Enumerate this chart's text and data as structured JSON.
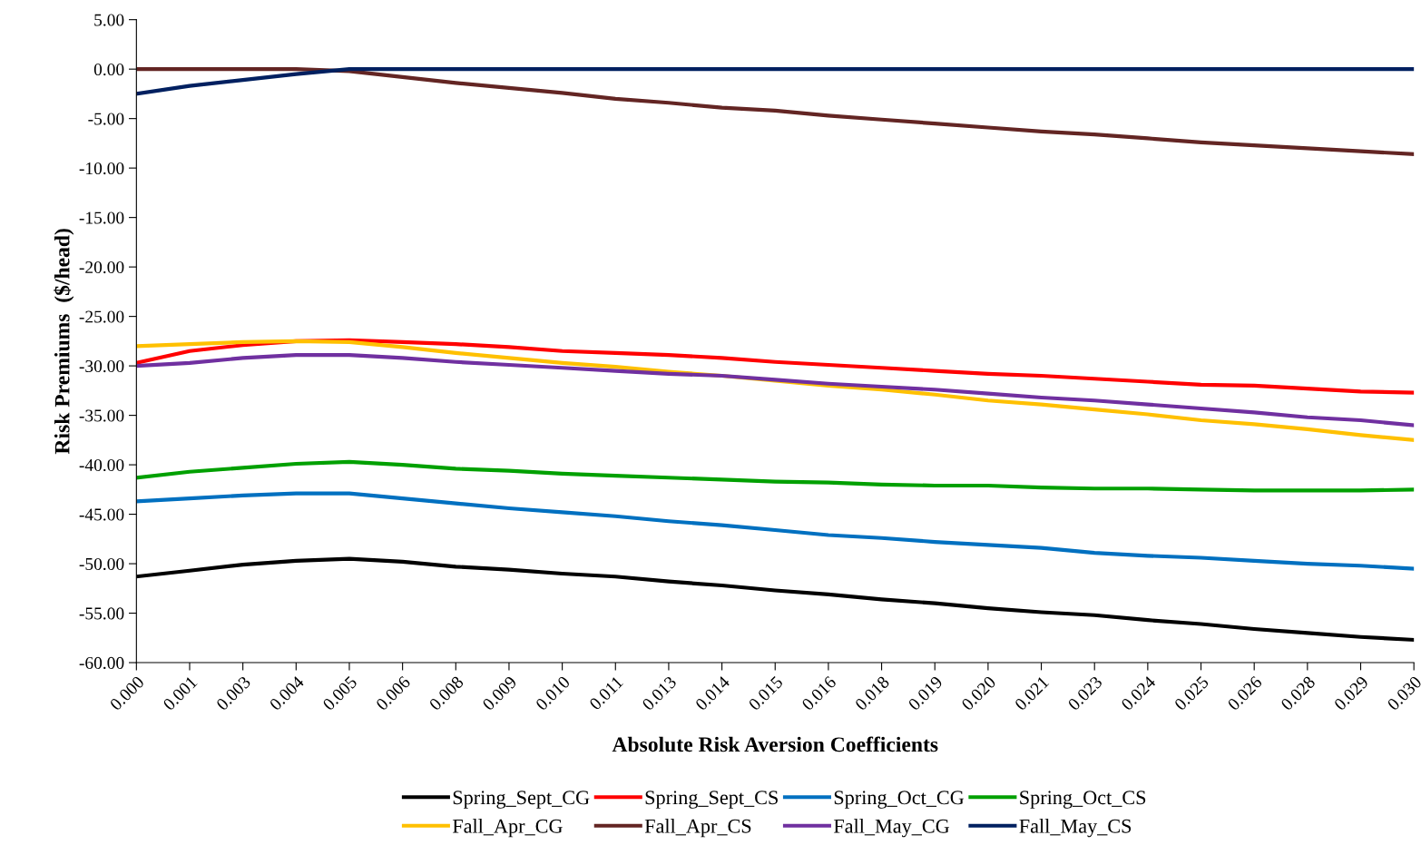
{
  "chart_data": {
    "type": "line",
    "xlabel": "Absolute Risk Aversion Coefficients",
    "ylabel": "Risk Premiums  ($/head)",
    "categories": [
      "0.000",
      "0.001",
      "0.003",
      "0.004",
      "0.005",
      "0.006",
      "0.008",
      "0.009",
      "0.010",
      "0.011",
      "0.013",
      "0.014",
      "0.015",
      "0.016",
      "0.018",
      "0.019",
      "0.020",
      "0.021",
      "0.023",
      "0.024",
      "0.025",
      "0.026",
      "0.028",
      "0.029",
      "0.030"
    ],
    "series": [
      {
        "name": "Spring_Sept_CG",
        "color": "#000000",
        "values": [
          -51.3,
          -50.7,
          -50.1,
          -49.7,
          -49.5,
          -49.8,
          -50.3,
          -50.6,
          -51.0,
          -51.3,
          -51.8,
          -52.2,
          -52.7,
          -53.1,
          -53.6,
          -54.0,
          -54.5,
          -54.9,
          -55.2,
          -55.7,
          -56.1,
          -56.6,
          -57.0,
          -57.4,
          -57.7
        ]
      },
      {
        "name": "Spring_Sept_CS",
        "color": "#ff0000",
        "values": [
          -29.7,
          -28.5,
          -27.9,
          -27.5,
          -27.4,
          -27.6,
          -27.8,
          -28.1,
          -28.5,
          -28.7,
          -28.9,
          -29.2,
          -29.6,
          -29.9,
          -30.2,
          -30.5,
          -30.8,
          -31.0,
          -31.3,
          -31.6,
          -31.9,
          -32.0,
          -32.3,
          -32.6,
          -32.7
        ]
      },
      {
        "name": "Spring_Oct_CG",
        "color": "#0070c0",
        "values": [
          -43.7,
          -43.4,
          -43.1,
          -42.9,
          -42.9,
          -43.4,
          -43.9,
          -44.4,
          -44.8,
          -45.2,
          -45.7,
          -46.1,
          -46.6,
          -47.1,
          -47.4,
          -47.8,
          -48.1,
          -48.4,
          -48.9,
          -49.2,
          -49.4,
          -49.7,
          -50.0,
          -50.2,
          -50.5
        ]
      },
      {
        "name": "Spring_Oct_CS",
        "color": "#00a000",
        "values": [
          -41.3,
          -40.7,
          -40.3,
          -39.9,
          -39.7,
          -40.0,
          -40.4,
          -40.6,
          -40.9,
          -41.1,
          -41.3,
          -41.5,
          -41.7,
          -41.8,
          -42.0,
          -42.1,
          -42.1,
          -42.3,
          -42.4,
          -42.4,
          -42.5,
          -42.6,
          -42.6,
          -42.6,
          -42.5
        ]
      },
      {
        "name": "Fall_Apr_CG",
        "color": "#ffc000",
        "values": [
          -28.0,
          -27.8,
          -27.6,
          -27.5,
          -27.6,
          -28.1,
          -28.7,
          -29.2,
          -29.7,
          -30.1,
          -30.6,
          -31.0,
          -31.5,
          -32.0,
          -32.4,
          -32.9,
          -33.5,
          -33.9,
          -34.4,
          -34.9,
          -35.5,
          -35.9,
          -36.4,
          -37.0,
          -37.5
        ]
      },
      {
        "name": "Fall_Apr_CS",
        "color": "#632523",
        "values": [
          0,
          0,
          0,
          0,
          -0.2,
          -0.8,
          -1.4,
          -1.9,
          -2.4,
          -3.0,
          -3.4,
          -3.9,
          -4.2,
          -4.7,
          -5.1,
          -5.5,
          -5.9,
          -6.3,
          -6.6,
          -7.0,
          -7.4,
          -7.7,
          -8.0,
          -8.3,
          -8.6
        ]
      },
      {
        "name": "Fall_May_CG",
        "color": "#7030a0",
        "values": [
          -30.0,
          -29.7,
          -29.2,
          -28.9,
          -28.9,
          -29.2,
          -29.6,
          -29.9,
          -30.2,
          -30.5,
          -30.8,
          -31.0,
          -31.4,
          -31.8,
          -32.1,
          -32.4,
          -32.8,
          -33.2,
          -33.5,
          -33.9,
          -34.3,
          -34.7,
          -35.2,
          -35.5,
          -36.0
        ]
      },
      {
        "name": "Fall_May_CS",
        "color": "#002060",
        "values": [
          -2.5,
          -1.7,
          -1.1,
          -0.5,
          0,
          0,
          0,
          0,
          0,
          0,
          0,
          0,
          0,
          0,
          0,
          0,
          0,
          0,
          0,
          0,
          0,
          0,
          0,
          0,
          0
        ]
      }
    ],
    "ylim": [
      -60,
      5
    ],
    "yticks": [
      {
        "value": 5,
        "label": "5.00"
      },
      {
        "value": 0,
        "label": "0.00"
      },
      {
        "value": -5,
        "label": "-5.00"
      },
      {
        "value": -10,
        "label": "-10.00"
      },
      {
        "value": -15,
        "label": "-15.00"
      },
      {
        "value": -20,
        "label": "-20.00"
      },
      {
        "value": -25,
        "label": "-25.00"
      },
      {
        "value": -30,
        "label": "-30.00"
      },
      {
        "value": -35,
        "label": "-35.00"
      },
      {
        "value": -40,
        "label": "-40.00"
      },
      {
        "value": -45,
        "label": "-45.00"
      },
      {
        "value": -50,
        "label": "-50.00"
      },
      {
        "value": -55,
        "label": "-55.00"
      },
      {
        "value": -60,
        "label": "-60.00"
      }
    ],
    "legend": "bottom",
    "grid": false,
    "marker": "none",
    "line_style": "solid"
  }
}
